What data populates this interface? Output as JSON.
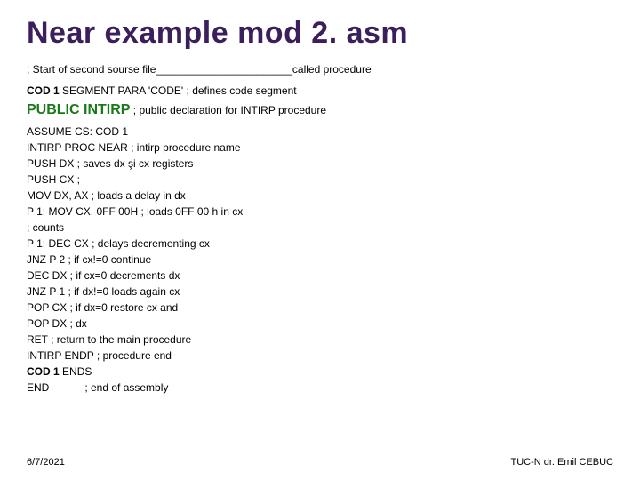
{
  "title": "Near example mod 2. asm",
  "subtitle": "; Start of second sourse file_______________________called procedure",
  "segline_bold": "COD 1",
  "segline_tail": " SEGMENT PARA 'CODE' ; defines code segment",
  "public_bold": "PUBLIC INTIRP",
  "public_tail": " ; public declaration for INTIRP procedure",
  "code": [
    "ASSUME CS: COD 1",
    "INTIRP PROC NEAR ; intirp procedure name",
    "PUSH DX ; saves dx şi cx registers",
    "PUSH CX ;",
    "MOV DX, AX ; loads a delay in dx",
    "P 1: MOV CX, 0FF 00H ; loads 0FF 00 h in cx",
    "; counts",
    "P 1: DEC CX ; delays decrementing cx",
    "JNZ P 2 ; if cx!=0 continue",
    "DEC DX ; if cx=0 decrements dx",
    "JNZ P 1 ; if dx!=0 loads again cx",
    "POP CX ; if dx=0 restore cx and",
    "POP DX ; dx",
    "RET ; return to the main procedure",
    "INTIRP ENDP ; procedure end"
  ],
  "ends_bold": "COD 1",
  "ends_tail": " ENDS",
  "end_line": "END            ; end of assembly",
  "footer_left": "6/7/2021",
  "footer_right": "TUC-N dr. Emil CEBUC",
  "colors": {
    "title": "#3b1f5c",
    "public": "#1a7a1a",
    "text": "#000000",
    "background": "#ffffff"
  }
}
